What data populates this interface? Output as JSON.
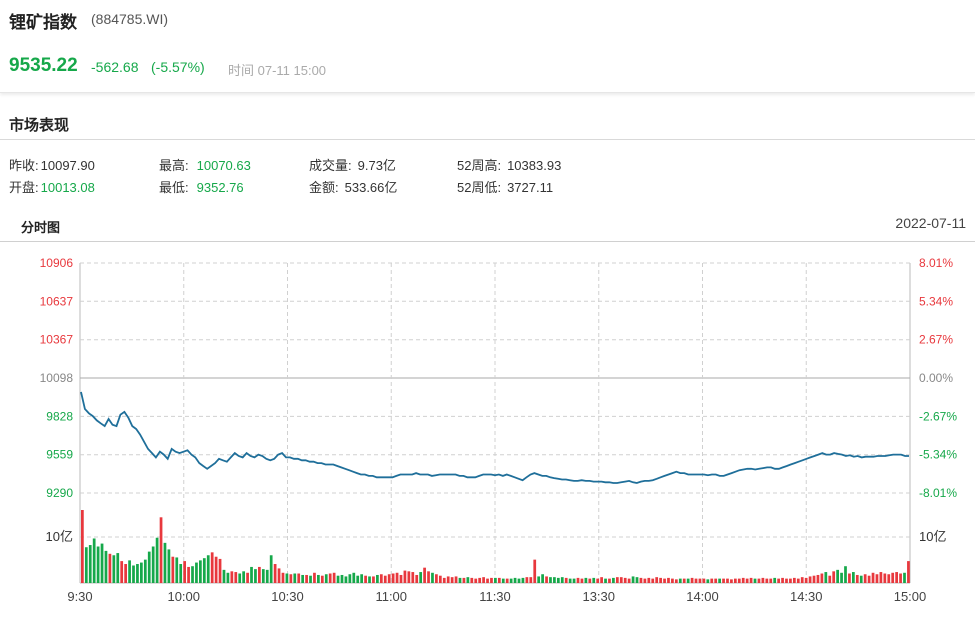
{
  "header": {
    "title": "锂矿指数",
    "code": "(884785.WI)",
    "price": "9535.22",
    "change": "-562.68",
    "change_pct": "(-5.57%)",
    "time": "时间 07-11 15:00"
  },
  "market": {
    "section_title": "市场表现",
    "stats": [
      {
        "label": "昨收:",
        "value": "10097.90",
        "color": "#333333"
      },
      {
        "label": "开盘:",
        "value": "10013.08",
        "color": "#16a84a"
      },
      {
        "label": "最高:",
        "value": "10070.63",
        "color": "#16a84a"
      },
      {
        "label": "最低:",
        "value": "9352.76",
        "color": "#16a84a"
      },
      {
        "label": "成交量:",
        "value": "9.73亿",
        "color": "#333333"
      },
      {
        "label": "金额:",
        "value": "533.66亿",
        "color": "#333333"
      },
      {
        "label": "52周高:",
        "value": "10383.93",
        "color": "#333333"
      },
      {
        "label": "52周低:",
        "value": "3727.11",
        "color": "#333333"
      }
    ]
  },
  "chart_tab": "分时图",
  "chart_date": "2022-07-11",
  "colors": {
    "up": "#e8383d",
    "down": "#16a84a",
    "line": "#1f6f9a",
    "grid": "#d0d0d0"
  },
  "chart_data": {
    "type": "line",
    "prev_close": 10097.9,
    "y_ticks": [
      "10906",
      "10637",
      "10367",
      "10098",
      "9828",
      "9559",
      "9290"
    ],
    "y_ticks_values": [
      10906,
      10637,
      10367,
      10098,
      9828,
      9559,
      9290
    ],
    "pct_ticks": [
      "8.01%",
      "5.34%",
      "2.67%",
      "0.00%",
      "-2.67%",
      "-5.34%",
      "-8.01%"
    ],
    "x_ticks": [
      "9:30",
      "10:00",
      "10:30",
      "11:00",
      "11:30",
      "13:30",
      "14:00",
      "14:30",
      "15:00"
    ],
    "volume_label_left": "10亿",
    "volume_label_right": "10亿",
    "price": [
      10000,
      9880,
      9850,
      9830,
      9800,
      9780,
      9760,
      9810,
      9770,
      9760,
      9840,
      9860,
      9820,
      9760,
      9740,
      9700,
      9650,
      9600,
      9570,
      9540,
      9580,
      9560,
      9530,
      9600,
      9580,
      9570,
      9580,
      9590,
      9560,
      9540,
      9500,
      9480,
      9460,
      9480,
      9500,
      9530,
      9520,
      9510,
      9540,
      9570,
      9550,
      9540,
      9570,
      9550,
      9540,
      9560,
      9550,
      9530,
      9520,
      9530,
      9560,
      9570,
      9540,
      9540,
      9530,
      9530,
      9520,
      9520,
      9510,
      9510,
      9500,
      9500,
      9490,
      9490,
      9490,
      9480,
      9470,
      9460,
      9450,
      9440,
      9430,
      9420,
      9420,
      9410,
      9410,
      9400,
      9400,
      9400,
      9400,
      9400,
      9410,
      9420,
      9420,
      9420,
      9420,
      9430,
      9420,
      9420,
      9420,
      9410,
      9415,
      9420,
      9420,
      9420,
      9420,
      9420,
      9410,
      9410,
      9400,
      9400,
      9400,
      9410,
      9420,
      9420,
      9420,
      9415,
      9420,
      9410,
      9420,
      9410,
      9400,
      9390,
      9380,
      9400,
      9420,
      9430,
      9420,
      9410,
      9410,
      9400,
      9395,
      9390,
      9385,
      9385,
      9380,
      9375,
      9375,
      9380,
      9375,
      9375,
      9370,
      9370,
      9370,
      9365,
      9365,
      9360,
      9360,
      9365,
      9370,
      9375,
      9365,
      9360,
      9370,
      9375,
      9375,
      9380,
      9390,
      9400,
      9410,
      9420,
      9430,
      9440,
      9430,
      9430,
      9420,
      9420,
      9420,
      9420,
      9420,
      9415,
      9420,
      9420,
      9410,
      9410,
      9420,
      9430,
      9440,
      9450,
      9455,
      9460,
      9460,
      9455,
      9460,
      9465,
      9470,
      9470,
      9460,
      9460,
      9470,
      9480,
      9490,
      9500,
      9510,
      9520,
      9530,
      9540,
      9550,
      9560,
      9570,
      9560,
      9560,
      9570,
      9565,
      9560,
      9550,
      9555,
      9545,
      9550,
      9540,
      9545,
      9545,
      9545,
      9550,
      9550,
      9550,
      9555,
      9560,
      9560,
      9560,
      9550,
      9550
    ],
    "volume": [
      10.0,
      4.9,
      5.2,
      6.1,
      5.0,
      5.4,
      4.4,
      4.0,
      3.8,
      4.1,
      3.0,
      2.6,
      3.1,
      2.4,
      2.6,
      2.8,
      3.2,
      4.3,
      5.0,
      6.2,
      9.0,
      5.5,
      4.6,
      3.6,
      3.5,
      2.6,
      3.0,
      2.2,
      2.3,
      2.8,
      3.1,
      3.4,
      3.8,
      4.2,
      3.6,
      3.3,
      1.8,
      1.4,
      1.6,
      1.5,
      1.3,
      1.6,
      1.4,
      2.2,
      1.9,
      2.2,
      1.9,
      1.8,
      3.8,
      2.6,
      2.0,
      1.4,
      1.3,
      1.2,
      1.3,
      1.3,
      1.1,
      1.1,
      1.0,
      1.4,
      1.1,
      1.0,
      1.2,
      1.3,
      1.4,
      1.0,
      1.1,
      0.9,
      1.2,
      1.4,
      1.0,
      1.2,
      1.0,
      0.9,
      0.9,
      1.1,
      1.2,
      1.0,
      1.2,
      1.3,
      1.4,
      1.1,
      1.7,
      1.6,
      1.5,
      1.1,
      1.5,
      2.1,
      1.6,
      1.4,
      1.2,
      1.0,
      0.7,
      0.9,
      0.8,
      0.9,
      0.7,
      0.7,
      0.8,
      0.7,
      0.6,
      0.7,
      0.8,
      0.6,
      0.7,
      0.7,
      0.7,
      0.6,
      0.6,
      0.6,
      0.7,
      0.6,
      0.7,
      0.8,
      0.8,
      3.2,
      0.9,
      1.2,
      0.9,
      0.8,
      0.8,
      0.7,
      0.8,
      0.7,
      0.6,
      0.6,
      0.7,
      0.6,
      0.7,
      0.6,
      0.7,
      0.6,
      0.8,
      0.6,
      0.6,
      0.7,
      0.8,
      0.8,
      0.7,
      0.6,
      0.9,
      0.8,
      0.7,
      0.6,
      0.7,
      0.6,
      0.8,
      0.7,
      0.6,
      0.7,
      0.6,
      0.5,
      0.6,
      0.6,
      0.6,
      0.7,
      0.6,
      0.6,
      0.6,
      0.5,
      0.6,
      0.6,
      0.6,
      0.6,
      0.6,
      0.5,
      0.6,
      0.6,
      0.7,
      0.6,
      0.7,
      0.6,
      0.6,
      0.7,
      0.6,
      0.6,
      0.7,
      0.6,
      0.7,
      0.6,
      0.6,
      0.7,
      0.6,
      0.8,
      0.7,
      0.9,
      1.0,
      1.1,
      1.3,
      1.5,
      1.0,
      1.6,
      1.8,
      1.4,
      2.3,
      1.3,
      1.5,
      1.1,
      1.0,
      1.2,
      1.0,
      1.4,
      1.2,
      1.5,
      1.3,
      1.2,
      1.4,
      1.5,
      1.3,
      1.4,
      3.0
    ]
  }
}
